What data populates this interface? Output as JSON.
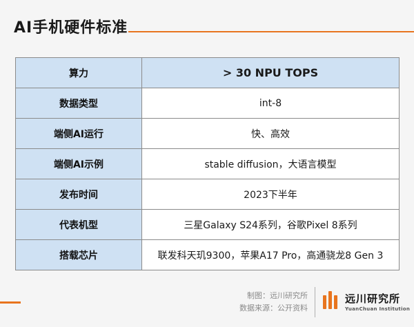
{
  "header": {
    "title": "AI手机硬件标准"
  },
  "table": {
    "rows": [
      {
        "key": "算力",
        "value": "> 30 NPU TOPS"
      },
      {
        "key": "数据类型",
        "value": "int-8"
      },
      {
        "key": "端侧AI运行",
        "value": "快、高效"
      },
      {
        "key": "端侧AI示例",
        "value": "stable diffusion，大语言模型"
      },
      {
        "key": "发布时间",
        "value": "2023下半年"
      },
      {
        "key": "代表机型",
        "value": "三星Galaxy S24系列，谷歌Pixel 8系列"
      },
      {
        "key": "搭载芯片",
        "value": "联发科天玑9300，苹果A17 Pro，高通骁龙8 Gen 3"
      }
    ]
  },
  "footer": {
    "made_by": "制图：远川研究所",
    "source": "数据来源：公开资料",
    "logo_cn": "远川研究所",
    "logo_en": "YuanChuan Institution"
  },
  "colors": {
    "accent": "#e8741e",
    "header_fill": "#cfe1f3"
  }
}
